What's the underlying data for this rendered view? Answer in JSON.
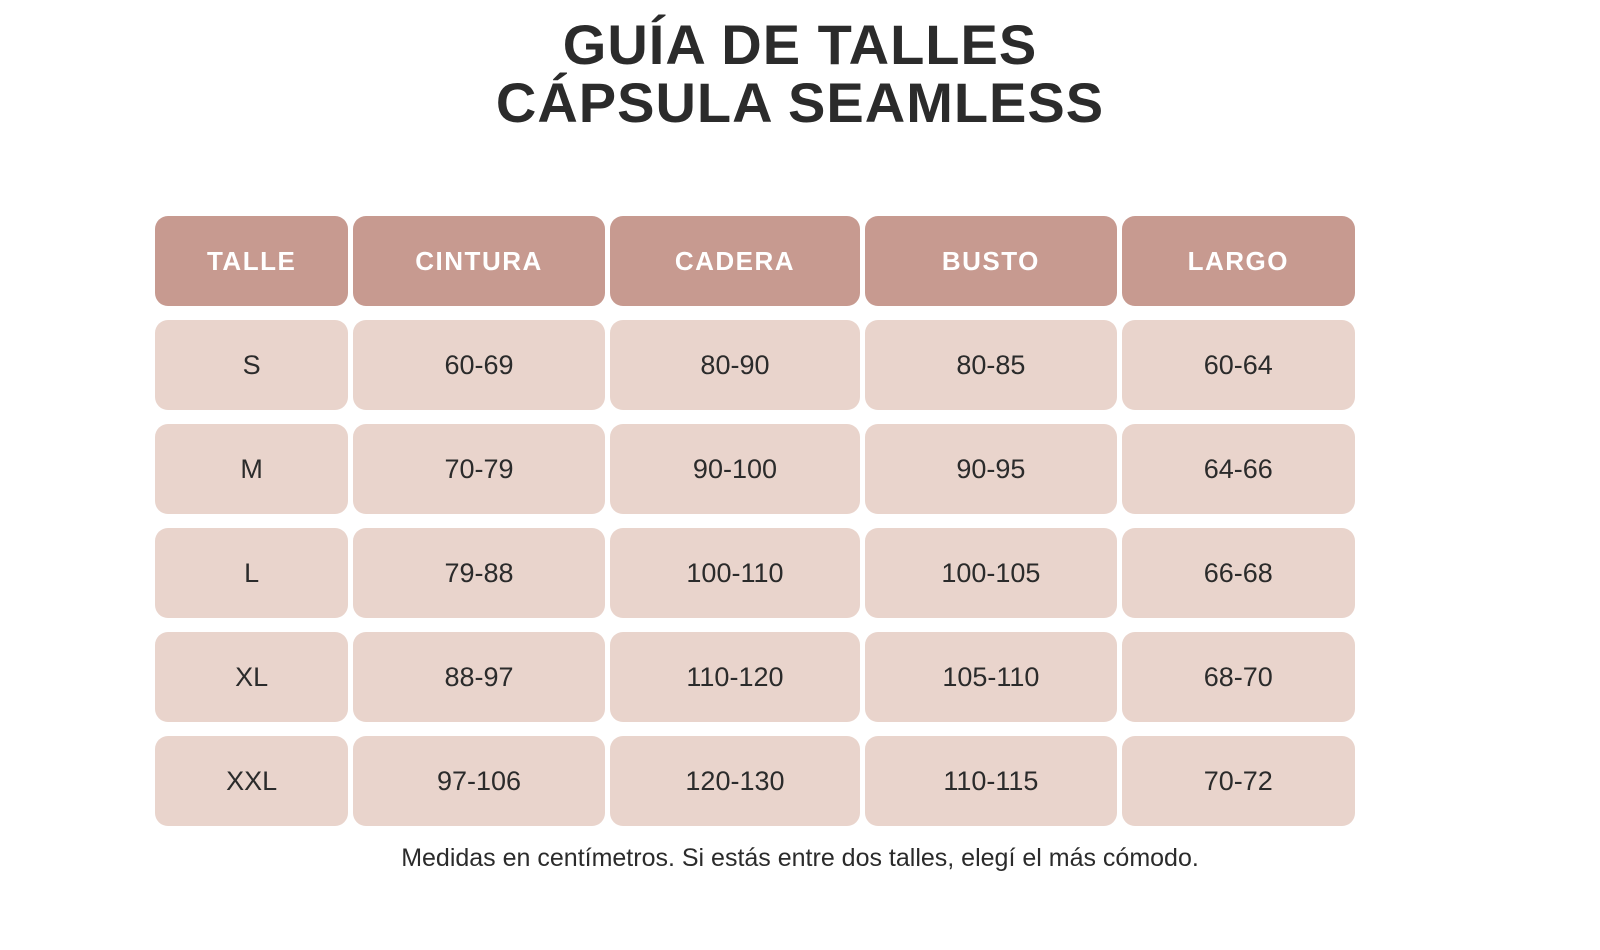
{
  "title": {
    "line1": "GUÍA DE TALLES",
    "line2": "CÁPSULA SEAMLESS"
  },
  "table": {
    "columns": [
      "TALLE",
      "CINTURA",
      "CADERA",
      "BUSTO",
      "LARGO"
    ],
    "rows": [
      [
        "S",
        "60-69",
        "80-90",
        "80-85",
        "60-64"
      ],
      [
        "M",
        "70-79",
        "90-100",
        "90-95",
        "64-66"
      ],
      [
        "L",
        "79-88",
        "100-110",
        "100-105",
        "66-68"
      ],
      [
        "XL",
        "88-97",
        "110-120",
        "105-110",
        "68-70"
      ],
      [
        "XXL",
        "97-106",
        "120-130",
        "110-115",
        "70-72"
      ]
    ]
  },
  "footer_note": "Medidas en centímetros. Si estás entre dos talles, elegí el más cómodo.",
  "chart_data": {
    "type": "table",
    "title": "GUÍA DE TALLES CÁPSULA SEAMLESS",
    "columns": [
      "TALLE",
      "CINTURA",
      "CADERA",
      "BUSTO",
      "LARGO"
    ],
    "rows": [
      [
        "S",
        "60-69",
        "80-90",
        "80-85",
        "60-64"
      ],
      [
        "M",
        "70-79",
        "90-100",
        "90-95",
        "64-66"
      ],
      [
        "L",
        "79-88",
        "100-110",
        "100-105",
        "66-68"
      ],
      [
        "XL",
        "88-97",
        "110-120",
        "105-110",
        "68-70"
      ],
      [
        "XXL",
        "97-106",
        "120-130",
        "110-115",
        "70-72"
      ]
    ],
    "units": "centímetros",
    "note": "Medidas en centímetros. Si estás entre dos talles, elegí el más cómodo."
  },
  "colors": {
    "header_bg": "#c79a90",
    "cell_bg": "#e9d4cc",
    "title_color": "#2b2b2b",
    "cell_text": "#2b2b2b",
    "header_text": "#ffffff",
    "page_bg": "#ffffff"
  }
}
